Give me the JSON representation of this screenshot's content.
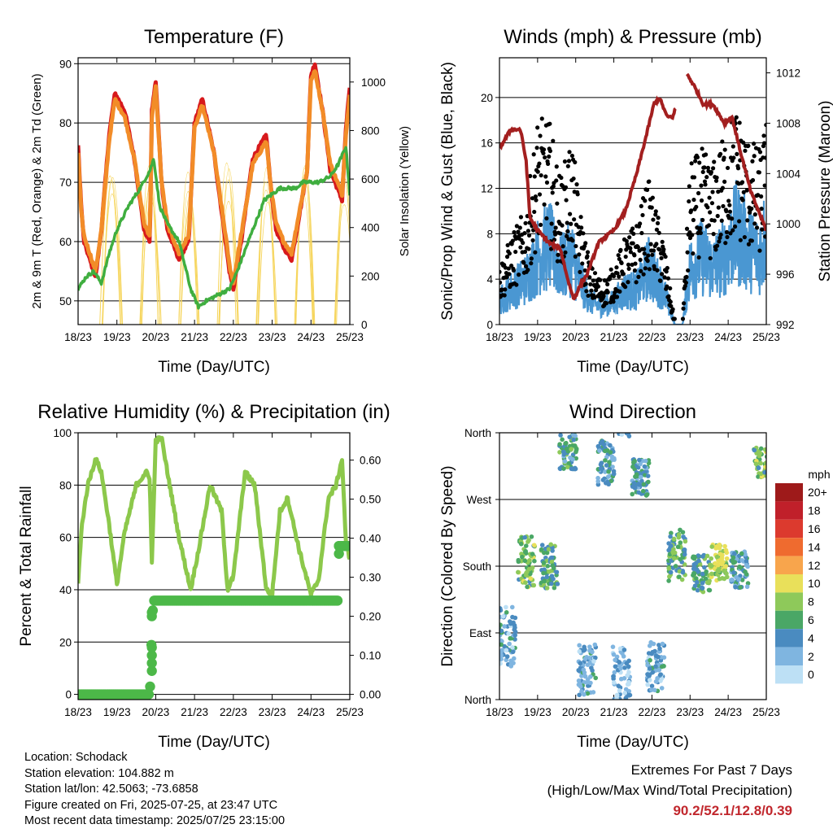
{
  "info": {
    "location": "Location: Schodack",
    "elevation": "Station elevation: 104.882 m",
    "latlon": "Station lat/lon: 42.5063; -73.6858",
    "created": "Figure created on Fri, 2025-07-25, at 23:47 UTC",
    "latest": "Most recent data timestamp: 2025/07/25 23:15:00"
  },
  "extremes": {
    "title": "Extremes For Past 7 Days",
    "subtitle": "(High/Low/Max Wind/Total Precipitation)",
    "values": "90.2/52.1/12.8/0.39"
  },
  "colors": {
    "temp2m": "#d7191c",
    "temp9m": "#f28c28",
    "dewpoint": "#3fae3f",
    "solar": "#f6d55c",
    "gust": "#000000",
    "wind": "#4a97d2",
    "pressure": "#a31f1f",
    "rh": "#8cc84b",
    "precip": "#4cb848"
  },
  "chart_data": [
    {
      "id": "temperature",
      "type": "line",
      "title": "Temperature (F)",
      "xlabel": "Time (Day/UTC)",
      "ylabel": "2m & 9m T (Red, Orange) & 2m Td (Green)",
      "y2label": "Solar Insolation (Yellow)",
      "x_ticks": [
        "18/23",
        "19/23",
        "20/23",
        "21/23",
        "22/23",
        "23/23",
        "24/23",
        "25/23"
      ],
      "ylim": [
        46,
        91
      ],
      "y_ticks": [
        50,
        60,
        70,
        80,
        90
      ],
      "y2lim": [
        0,
        1100
      ],
      "y2_ticks": [
        0,
        200,
        400,
        600,
        800,
        1000
      ],
      "grid": true,
      "series": [
        {
          "color_key": "temp2m",
          "x": [
            0,
            0.08,
            0.15,
            0.25,
            0.35,
            0.45,
            0.6,
            0.8,
            0.95,
            1.2,
            1.45,
            1.7,
            1.85,
            1.9,
            2.0,
            2.15,
            2.3,
            2.6,
            2.85,
            3.0,
            3.2,
            3.5,
            3.8,
            3.9,
            4.0,
            4.2,
            4.5,
            4.85,
            4.95,
            5.1,
            5.3,
            5.5,
            5.9,
            6.0,
            6.1,
            6.3,
            6.5,
            6.8,
            6.9,
            7.0
          ],
          "values": [
            76,
            66,
            60,
            58,
            56,
            54,
            62,
            78,
            85,
            82,
            74,
            62,
            60,
            82,
            87,
            70,
            62,
            57,
            60,
            80,
            84,
            75,
            60,
            55,
            52,
            60,
            74,
            78,
            70,
            62,
            59,
            57,
            72,
            88,
            90,
            82,
            72,
            67,
            79,
            86
          ]
        },
        {
          "color_key": "temp9m",
          "x": [
            0,
            0.08,
            0.15,
            0.25,
            0.35,
            0.45,
            0.6,
            0.8,
            0.95,
            1.2,
            1.45,
            1.7,
            1.85,
            1.9,
            2.0,
            2.15,
            2.3,
            2.6,
            2.85,
            3.0,
            3.2,
            3.5,
            3.8,
            3.9,
            4.0,
            4.2,
            4.5,
            4.85,
            4.95,
            5.1,
            5.3,
            5.5,
            5.9,
            6.0,
            6.1,
            6.3,
            6.5,
            6.8,
            6.9,
            7.0
          ],
          "values": [
            75,
            65,
            61,
            59,
            57,
            55,
            62,
            77,
            84,
            81,
            74,
            63,
            61,
            81,
            86,
            70,
            63,
            58,
            61,
            79,
            83,
            75,
            61,
            56,
            53,
            61,
            73,
            77,
            70,
            63,
            60,
            58,
            72,
            87,
            89,
            82,
            73,
            68,
            78,
            85
          ]
        },
        {
          "color_key": "dewpoint",
          "x": [
            0,
            0.2,
            0.4,
            0.6,
            0.8,
            1.0,
            1.3,
            1.6,
            1.85,
            1.95,
            2.1,
            2.3,
            2.6,
            2.9,
            3.1,
            3.3,
            3.6,
            3.9,
            4.1,
            4.5,
            4.8,
            5.0,
            5.2,
            5.4,
            5.6,
            5.8,
            6.0,
            6.2,
            6.5,
            6.7,
            6.9,
            7.0
          ],
          "values": [
            52,
            54,
            55,
            53,
            58,
            62,
            66,
            69,
            72,
            74,
            66,
            63,
            60,
            52,
            49,
            50,
            51,
            52,
            55,
            62,
            67,
            68,
            69,
            69,
            69,
            70,
            70,
            70,
            71,
            73,
            76,
            68
          ]
        }
      ],
      "solar_peaks": [
        {
          "x": 0.85,
          "value": 960
        },
        {
          "x": 1.85,
          "value": 1000
        },
        {
          "x": 2.85,
          "value": 920
        },
        {
          "x": 3.85,
          "value": 990
        },
        {
          "x": 4.85,
          "value": 1020
        },
        {
          "x": 5.85,
          "value": 980
        },
        {
          "x": 6.85,
          "value": 1000
        }
      ]
    },
    {
      "id": "winds",
      "type": "scatter",
      "title": "Winds (mph) & Pressure (mb)",
      "xlabel": "Time (Day/UTC)",
      "ylabel": "Sonic/Prop Wind & Gust (Blue, Black)",
      "y2label": "Station Pressure (Maroon)",
      "x_ticks": [
        "18/23",
        "19/23",
        "20/23",
        "21/23",
        "22/23",
        "23/23",
        "24/23",
        "25/23"
      ],
      "ylim": [
        0,
        23.5
      ],
      "y_ticks": [
        0,
        4,
        8,
        12,
        16,
        20
      ],
      "y2lim": [
        992,
        1013.2
      ],
      "y2_ticks": [
        992,
        996,
        1000,
        1004,
        1008,
        1012
      ],
      "grid": true,
      "pressure": {
        "x": [
          0,
          0.3,
          0.55,
          0.7,
          0.8,
          1.0,
          1.3,
          1.6,
          1.8,
          1.95,
          2.1,
          2.3,
          2.6,
          3.0,
          3.3,
          3.6,
          3.85,
          4.05,
          4.2,
          4.4,
          4.55,
          4.9,
          5.1,
          5.35,
          5.6,
          5.9,
          6.1,
          6.3,
          6.6,
          6.8,
          7.0
        ],
        "values": [
          1006,
          1007.5,
          1007.5,
          1005,
          1000.5,
          999.5,
          998.5,
          998,
          995.5,
          994,
          995,
          996,
          998.5,
          999.5,
          1001,
          1004,
          1007,
          1009.5,
          1010,
          1008.5,
          1008.5,
          1012,
          1011,
          1009.5,
          1009.5,
          1008,
          1008.5,
          1006,
          1002.5,
          1001,
          999.5
        ]
      },
      "wind": {
        "x": [
          0,
          0.3,
          0.7,
          1.0,
          1.3,
          1.6,
          1.9,
          2.1,
          2.4,
          2.7,
          3.0,
          3.3,
          3.6,
          3.9,
          4.1,
          4.3,
          4.6,
          4.8,
          5.0,
          5.3,
          5.6,
          5.9,
          6.2,
          6.5,
          6.8,
          7.0
        ],
        "values": [
          2,
          3,
          4,
          6,
          7,
          5,
          6,
          4,
          2,
          1.5,
          2,
          3,
          3,
          5,
          4,
          3,
          0,
          0,
          5,
          6,
          5,
          6,
          8,
          7,
          6,
          8
        ]
      },
      "gust": {
        "x": [
          0,
          0.3,
          0.7,
          1.0,
          1.3,
          1.6,
          1.9,
          2.1,
          2.4,
          2.7,
          3.0,
          3.3,
          3.6,
          3.9,
          4.1,
          4.3,
          4.6,
          4.8,
          5.0,
          5.3,
          5.6,
          5.9,
          6.2,
          6.5,
          6.8,
          7.0
        ],
        "values": [
          4,
          6,
          8,
          14,
          14,
          10,
          13,
          8,
          4,
          3,
          4,
          6,
          7,
          10,
          8,
          6,
          0,
          0,
          11,
          12,
          11,
          13,
          15,
          13,
          12,
          14
        ]
      }
    },
    {
      "id": "humidity",
      "type": "line",
      "title": "Relative Humidity (%) & Precipitation (in)",
      "xlabel": "Time (Day/UTC)",
      "ylabel": "Percent & Total Rainfall",
      "x_ticks": [
        "18/23",
        "19/23",
        "20/23",
        "21/23",
        "22/23",
        "23/23",
        "24/23",
        "25/23"
      ],
      "ylim": [
        -2,
        100
      ],
      "y_ticks": [
        0,
        20,
        40,
        60,
        80,
        100
      ],
      "y2lim": [
        -0.0134,
        0.67
      ],
      "y2_ticks": [
        "0.00",
        "0.10",
        "0.20",
        "0.30",
        "0.40",
        "0.50",
        "0.60"
      ],
      "grid": true,
      "rh": {
        "x": [
          0,
          0.1,
          0.25,
          0.45,
          0.6,
          0.8,
          1.0,
          1.2,
          1.5,
          1.75,
          1.85,
          1.9,
          2.0,
          2.15,
          2.3,
          2.6,
          2.9,
          3.1,
          3.4,
          3.7,
          3.85,
          4.0,
          4.3,
          4.55,
          4.85,
          5.0,
          5.2,
          5.4,
          5.7,
          6.0,
          6.2,
          6.45,
          6.65,
          6.8,
          6.9,
          7.0
        ],
        "values": [
          43,
          65,
          80,
          90,
          85,
          65,
          42,
          62,
          80,
          85,
          82,
          50,
          97,
          98,
          85,
          60,
          40,
          55,
          80,
          70,
          40,
          45,
          85,
          80,
          40,
          38,
          70,
          75,
          55,
          38,
          44,
          75,
          80,
          90,
          58,
          52
        ]
      },
      "precip": {
        "x": [
          0,
          1.85,
          1.87,
          1.9,
          1.92,
          1.95,
          6.7,
          6.72,
          7.0
        ],
        "values": [
          0,
          0,
          0.08,
          0.15,
          0.21,
          0.24,
          0.24,
          0.38,
          0.38
        ]
      }
    },
    {
      "id": "direction",
      "type": "scatter",
      "title": "Wind Direction",
      "xlabel": "Time (Day/UTC)",
      "ylabel": "Direction (Colored By Speed)",
      "x_ticks": [
        "18/23",
        "19/23",
        "20/23",
        "21/23",
        "22/23",
        "23/23",
        "24/23",
        "25/23"
      ],
      "y_ticks": [
        "North",
        "East",
        "South",
        "West",
        "North"
      ],
      "ylim": [
        0,
        360
      ],
      "grid": true,
      "legend_title": "mph",
      "legend_placement": "right",
      "legend_labels": [
        "20+",
        "18",
        "16",
        "14",
        "12",
        "10",
        "8",
        "6",
        "4",
        "2",
        "0"
      ],
      "legend_colors": [
        "#9e1a1a",
        "#c0202a",
        "#dc3a2e",
        "#ef6b2f",
        "#f8a54c",
        "#e9e05a",
        "#8ec95a",
        "#4aa766",
        "#4a8bc0",
        "#7fb5e0",
        "#bde0f5"
      ],
      "clusters": [
        {
          "x": 0.2,
          "dir": 85,
          "spread": 40,
          "speed": 3
        },
        {
          "x": 0.7,
          "dir": 185,
          "spread": 35,
          "speed": 7
        },
        {
          "x": 1.3,
          "dir": 180,
          "spread": 30,
          "speed": 6
        },
        {
          "x": 1.8,
          "dir": 335,
          "spread": 25,
          "speed": 5
        },
        {
          "x": 2.3,
          "dir": 40,
          "spread": 35,
          "speed": 3
        },
        {
          "x": 2.8,
          "dir": 320,
          "spread": 30,
          "speed": 4
        },
        {
          "x": 3.2,
          "dir": 35,
          "spread": 40,
          "speed": 2
        },
        {
          "x": 3.7,
          "dir": 300,
          "spread": 25,
          "speed": 4
        },
        {
          "x": 4.1,
          "dir": 45,
          "spread": 35,
          "speed": 3
        },
        {
          "x": 4.65,
          "dir": 195,
          "spread": 35,
          "speed": 6
        },
        {
          "x": 5.3,
          "dir": 170,
          "spread": 25,
          "speed": 6
        },
        {
          "x": 5.75,
          "dir": 185,
          "spread": 25,
          "speed": 9
        },
        {
          "x": 6.3,
          "dir": 175,
          "spread": 25,
          "speed": 4
        },
        {
          "x": 6.9,
          "dir": 320,
          "spread": 20,
          "speed": 7
        }
      ]
    }
  ]
}
